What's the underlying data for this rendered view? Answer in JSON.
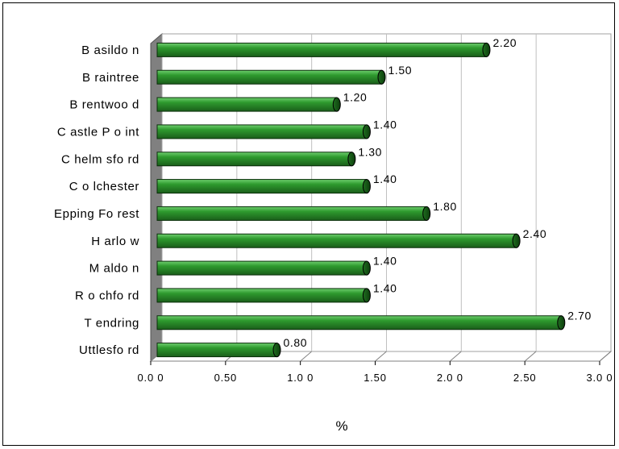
{
  "chart_data": {
    "type": "bar",
    "orientation": "horizontal",
    "categories": [
      "Basildon",
      "Braintree",
      "Brentwood",
      "Castle Point",
      "Chelmsford",
      "Colchester",
      "Epping Forest",
      "Harlow",
      "Maldon",
      "Rochford",
      "Tendring",
      "Uttlesford"
    ],
    "category_labels": [
      "B asildo n",
      "B raintree",
      "B rentwoo d",
      "C astle P o int",
      "C helm sfo rd",
      "C o lchester",
      "Epping Fo rest",
      "H arlo w",
      "M aldo n",
      "R o chfo rd",
      "T endring",
      "Uttlesfo rd"
    ],
    "values": [
      2.2,
      1.5,
      1.2,
      1.4,
      1.3,
      1.4,
      1.8,
      2.4,
      1.4,
      1.4,
      2.7,
      0.8
    ],
    "value_labels": [
      "2.20",
      "1.50",
      "1.20",
      "1.40",
      "1.30",
      "1.40",
      "1.80",
      "2.40",
      "1.40",
      "1.40",
      "2.70",
      "0.80"
    ],
    "xlabel": "%",
    "xlim": [
      0,
      3.0
    ],
    "xticks": [
      "0.0 0",
      "0.50",
      "1.0 0",
      "1.50",
      "2.0 0",
      "2.50",
      "3.0 0"
    ],
    "grid": true,
    "bar_color": "#2e8b2e",
    "bar_edge_color": "#0a2e0a",
    "wall_color": "#808080"
  }
}
